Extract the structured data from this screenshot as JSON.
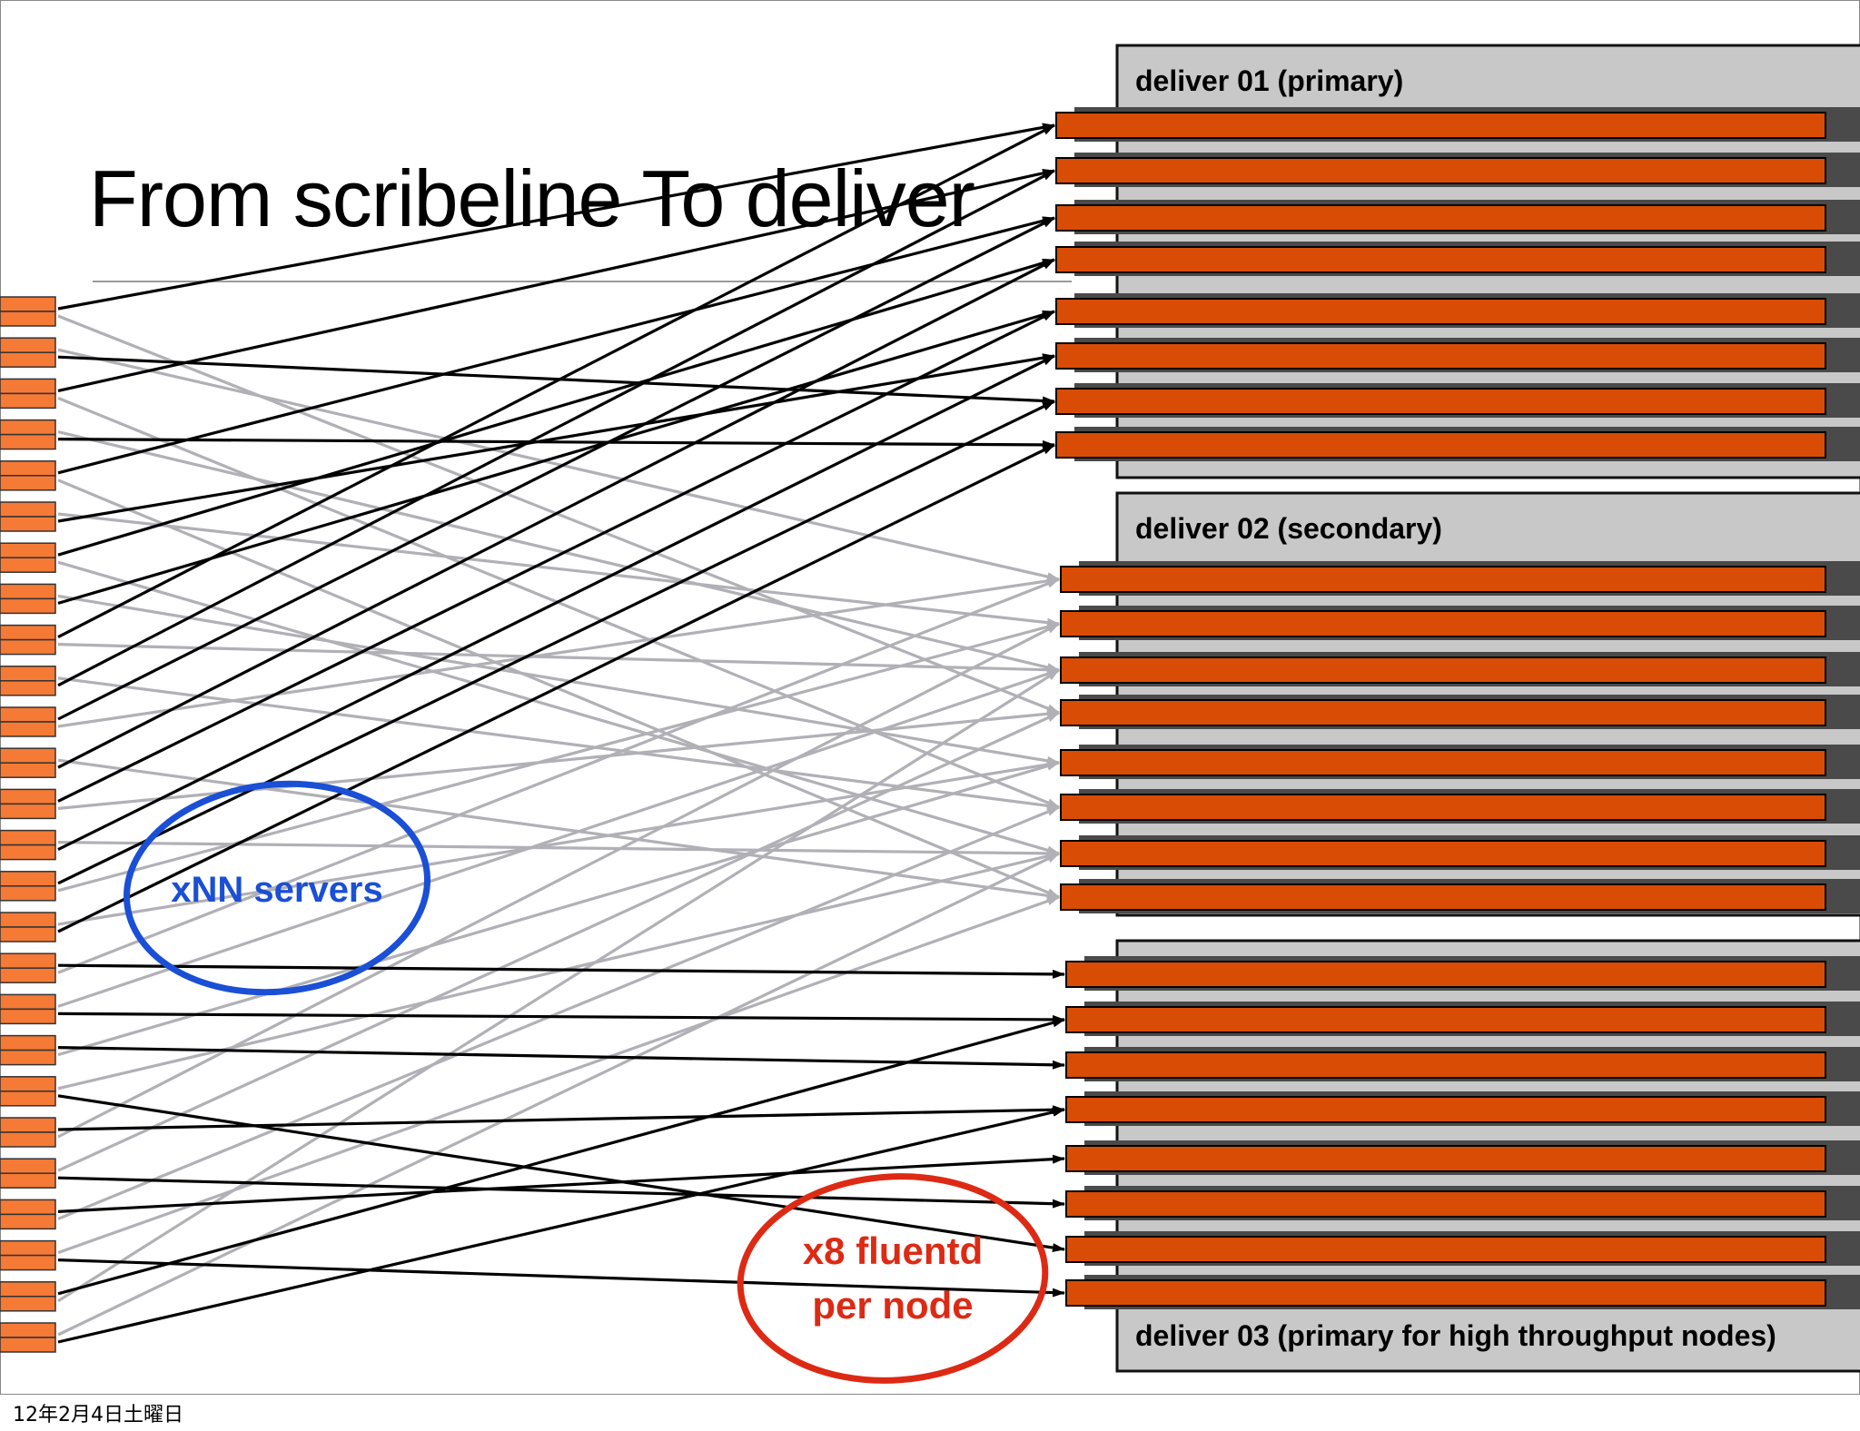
{
  "slide": {
    "title": "From scribeline To deliver",
    "footer_date": "12年2月4日土曜日"
  },
  "groups": [
    {
      "label": "deliver 01 (primary)",
      "role": "primary"
    },
    {
      "label": "deliver 02 (secondary)",
      "role": "secondary"
    },
    {
      "label": "deliver 03 (primary for high throughput nodes)",
      "role": "primary"
    }
  ],
  "annotations": {
    "servers": "xNN servers",
    "fluentd_line1": "x8 fluentd",
    "fluentd_line2": "per node"
  },
  "colors": {
    "node_orange": "#d94c05",
    "server_orange": "#f57a35",
    "group_gray": "#c8c8c8",
    "primary_arrow": "#000000",
    "secondary_arrow": "#b0b0b6",
    "servers_ellipse": "#1a4fd6",
    "fluentd_ellipse": "#dd2a14"
  },
  "counts": {
    "servers": 26,
    "nodes_per_group": 8
  }
}
